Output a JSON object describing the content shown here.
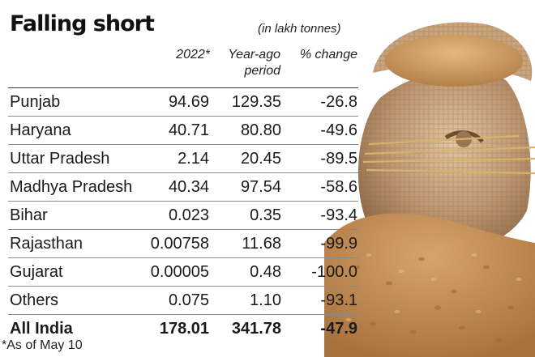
{
  "title": "Falling short",
  "unit_note": "(in lakh tonnes)",
  "columns": [
    "2022*",
    "Year-ago period",
    "% change"
  ],
  "rows": [
    {
      "state": "Punjab",
      "v2022": "94.69",
      "year_ago": "129.35",
      "change": "-26.8"
    },
    {
      "state": "Haryana",
      "v2022": "40.71",
      "year_ago": "80.80",
      "change": "-49.6"
    },
    {
      "state": "Uttar Pradesh",
      "v2022": "2.14",
      "year_ago": "20.45",
      "change": "-89.5"
    },
    {
      "state": "Madhya Pradesh",
      "v2022": "40.34",
      "year_ago": "97.54",
      "change": "-58.6"
    },
    {
      "state": "Bihar",
      "v2022": "0.023",
      "year_ago": "0.35",
      "change": "-93.4"
    },
    {
      "state": "Rajasthan",
      "v2022": "0.00758",
      "year_ago": "11.68",
      "change": "-99.9"
    },
    {
      "state": "Gujarat",
      "v2022": "0.00005",
      "year_ago": "0.48",
      "change": "-100.0"
    },
    {
      "state": "Others",
      "v2022": "0.075",
      "year_ago": "1.10",
      "change": "-93.1"
    }
  ],
  "total": {
    "state": "All India",
    "v2022": "178.01",
    "year_ago": "341.78",
    "change": "-47.9"
  },
  "footnote": "*As of May 10",
  "colors": {
    "sack": "#b8865a",
    "grain": "#c8975c",
    "text": "#1a1a1a"
  }
}
